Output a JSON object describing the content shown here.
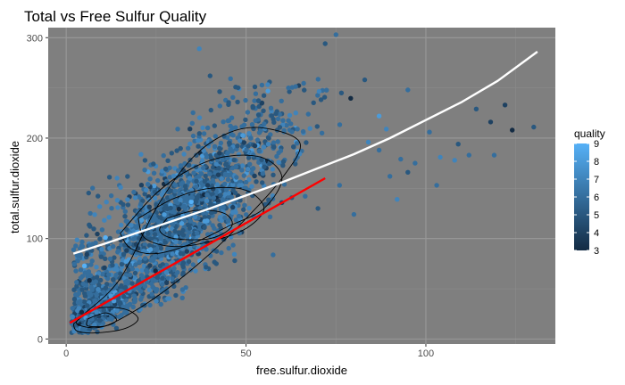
{
  "chart_data": {
    "type": "scatter",
    "title": "Total vs Free Sulfur Quality",
    "xlabel": "free.sulfur.dioxide",
    "ylabel": "total.sulfur.dioxide",
    "xlim": [
      -5,
      136
    ],
    "ylim": [
      -5,
      310
    ],
    "x_ticks": [
      0,
      50,
      100
    ],
    "y_ticks": [
      0,
      100,
      200,
      300
    ],
    "grid": true,
    "legend": {
      "title": "quality",
      "position": "right",
      "min": 3,
      "max": 9,
      "ticks": [
        3,
        4,
        5,
        6,
        7,
        8,
        9
      ],
      "color_low": "#132b43",
      "color_high": "#56b1f7"
    },
    "panel_background": "#7f7f7f",
    "lines": [
      {
        "color": "#ffffff",
        "x": [
          2,
          10,
          20,
          30,
          40,
          50,
          60,
          70,
          80,
          90,
          100,
          110,
          120,
          131
        ],
        "y": [
          85,
          94,
          106,
          118,
          130,
          143,
          156,
          170,
          184,
          200,
          218,
          236,
          257,
          286
        ]
      },
      {
        "color": "#ff0000",
        "x": [
          1,
          72
        ],
        "y": [
          16,
          160
        ]
      }
    ],
    "density_contours": [
      {
        "x": [
          5,
          15,
          25,
          35,
          45,
          55,
          65,
          60,
          50,
          40,
          30,
          20,
          10,
          3,
          5
        ],
        "y": [
          25,
          60,
          130,
          180,
          205,
          210,
          195,
          160,
          120,
          85,
          55,
          30,
          12,
          15,
          25
        ]
      },
      {
        "x": [
          15,
          25,
          35,
          45,
          55,
          60,
          55,
          45,
          35,
          25,
          18,
          15
        ],
        "y": [
          105,
          145,
          170,
          182,
          180,
          160,
          130,
          112,
          95,
          85,
          90,
          105
        ]
      },
      {
        "x": [
          20,
          30,
          40,
          50,
          55,
          50,
          40,
          30,
          22,
          20
        ],
        "y": [
          120,
          140,
          150,
          148,
          130,
          110,
          97,
          92,
          100,
          120
        ]
      },
      {
        "x": [
          28,
          36,
          44,
          46,
          40,
          30,
          26,
          28
        ],
        "y": [
          120,
          128,
          125,
          112,
          100,
          100,
          108,
          120
        ]
      },
      {
        "x": [
          2,
          8,
          16,
          20,
          16,
          8,
          3,
          2
        ],
        "y": [
          15,
          30,
          30,
          20,
          10,
          6,
          8,
          15
        ]
      },
      {
        "x": [
          6,
          11,
          14,
          11,
          6,
          6
        ],
        "y": [
          20,
          26,
          19,
          13,
          13,
          20
        ]
      }
    ],
    "outliers": [
      {
        "x": 75,
        "y": 303,
        "q": 6
      },
      {
        "x": 72,
        "y": 294,
        "q": 5
      },
      {
        "x": 37,
        "y": 289,
        "q": 7
      },
      {
        "x": 40,
        "y": 262,
        "q": 5
      },
      {
        "x": 83,
        "y": 258,
        "q": 5
      },
      {
        "x": 95,
        "y": 248,
        "q": 6
      },
      {
        "x": 122,
        "y": 233,
        "q": 4
      },
      {
        "x": 124,
        "y": 208,
        "q": 3
      },
      {
        "x": 130,
        "y": 211,
        "q": 5
      },
      {
        "x": 118,
        "y": 216,
        "q": 4
      },
      {
        "x": 112,
        "y": 183,
        "q": 6
      },
      {
        "x": 108,
        "y": 178,
        "q": 7
      },
      {
        "x": 104,
        "y": 181,
        "q": 7
      },
      {
        "x": 101,
        "y": 206,
        "q": 6
      },
      {
        "x": 97,
        "y": 175,
        "q": 6
      },
      {
        "x": 103,
        "y": 153,
        "q": 6
      },
      {
        "x": 95,
        "y": 166,
        "q": 5
      },
      {
        "x": 87,
        "y": 222,
        "q": 8
      },
      {
        "x": 109,
        "y": 194,
        "q": 5
      },
      {
        "x": 119,
        "y": 183,
        "q": 6
      },
      {
        "x": 87,
        "y": 188,
        "q": 6
      },
      {
        "x": 90,
        "y": 162,
        "q": 6
      },
      {
        "x": 92,
        "y": 139,
        "q": 7
      },
      {
        "x": 80,
        "y": 124,
        "q": 6
      },
      {
        "x": 76,
        "y": 153,
        "q": 6
      },
      {
        "x": 70,
        "y": 130,
        "q": 5
      },
      {
        "x": 84,
        "y": 196,
        "q": 7
      },
      {
        "x": 93,
        "y": 179,
        "q": 6
      },
      {
        "x": 114,
        "y": 229,
        "q": 5
      },
      {
        "x": 89,
        "y": 209,
        "q": 7
      }
    ]
  }
}
